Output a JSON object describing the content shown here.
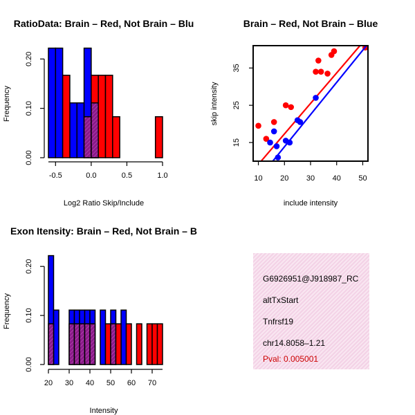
{
  "colors": {
    "red": "#ff0000",
    "blue": "#0000ff",
    "purple": "#8b1a89",
    "infobg": "#f6dcec",
    "pval": "#cc0000"
  },
  "chart_data": [
    {
      "id": "ratio",
      "type": "bar",
      "title": "RatioData: Brain – Red, Not Brain – Blu",
      "xlabel": "Log2 Ratio Skip/Include",
      "ylabel": "Frequency",
      "xlim": [
        -0.6,
        1.0
      ],
      "ylim": [
        0,
        0.22
      ],
      "xticks": [
        {
          "v": -0.5,
          "label": "-0.5"
        },
        {
          "v": 0.0,
          "label": "0.0"
        },
        {
          "v": 0.5,
          "label": "0.5"
        },
        {
          "v": 1.0,
          "label": "1.0"
        }
      ],
      "yticks": [
        {
          "v": 0.0,
          "label": "0.00"
        },
        {
          "v": 0.1,
          "label": "0.10"
        },
        {
          "v": 0.2,
          "label": "0.20"
        }
      ],
      "series": [
        {
          "name": "Brain",
          "color": "red",
          "bins": [
            {
              "x0": -0.4,
              "x1": -0.3,
              "v": 0.167
            },
            {
              "x0": -0.1,
              "x1": 0.0,
              "v": 0.083
            },
            {
              "x0": 0.0,
              "x1": 0.1,
              "v": 0.167
            },
            {
              "x0": 0.1,
              "x1": 0.2,
              "v": 0.167
            },
            {
              "x0": 0.2,
              "x1": 0.3,
              "v": 0.167
            },
            {
              "x0": 0.3,
              "x1": 0.4,
              "v": 0.083
            },
            {
              "x0": 0.9,
              "x1": 1.0,
              "v": 0.083
            }
          ]
        },
        {
          "name": "Not Brain",
          "color": "blue",
          "bins": [
            {
              "x0": -0.6,
              "x1": -0.5,
              "v": 0.222
            },
            {
              "x0": -0.5,
              "x1": -0.4,
              "v": 0.222
            },
            {
              "x0": -0.3,
              "x1": -0.2,
              "v": 0.111
            },
            {
              "x0": -0.2,
              "x1": -0.1,
              "v": 0.111
            },
            {
              "x0": -0.1,
              "x1": 0.0,
              "v": 0.222
            },
            {
              "x0": 0.0,
              "x1": 0.1,
              "v": 0.111
            }
          ]
        }
      ]
    },
    {
      "id": "scatter",
      "type": "scatter",
      "title": "Brain – Red, Not Brain – Blue",
      "xlabel": "include intensity",
      "ylabel": "skip intensity",
      "xlim": [
        8,
        52
      ],
      "ylim": [
        10,
        41
      ],
      "xticks": [
        {
          "v": 10,
          "label": "10"
        },
        {
          "v": 20,
          "label": "20"
        },
        {
          "v": 30,
          "label": "30"
        },
        {
          "v": 40,
          "label": "40"
        },
        {
          "v": 50,
          "label": "50"
        }
      ],
      "yticks": [
        {
          "v": 15,
          "label": "15"
        },
        {
          "v": 25,
          "label": "25"
        },
        {
          "v": 35,
          "label": "35"
        }
      ],
      "series": [
        {
          "name": "Brain",
          "color": "red",
          "points": [
            [
              10,
              19.5
            ],
            [
              13,
              16
            ],
            [
              16,
              20.5
            ],
            [
              20.5,
              25
            ],
            [
              22.5,
              24.5
            ],
            [
              32,
              34
            ],
            [
              33,
              37
            ],
            [
              34,
              34
            ],
            [
              36.5,
              33.5
            ],
            [
              38,
              38.5
            ],
            [
              39,
              39.5
            ],
            [
              51,
              40.5
            ]
          ],
          "fit": [
            [
              8,
              7.5
            ],
            [
              52,
              43.5
            ]
          ]
        },
        {
          "name": "Not Brain",
          "color": "blue",
          "points": [
            [
              14.5,
              15
            ],
            [
              16,
              18
            ],
            [
              17,
              14
            ],
            [
              17.5,
              11
            ],
            [
              20.5,
              15.5
            ],
            [
              22,
              15
            ],
            [
              25,
              21
            ],
            [
              26,
              20.5
            ],
            [
              32,
              27
            ]
          ],
          "fit": [
            [
              8,
              3.5
            ],
            [
              52,
              41.5
            ]
          ]
        }
      ]
    },
    {
      "id": "intensity",
      "type": "bar",
      "title": "Exon Itensity: Brain – Red, Not Brain – B",
      "xlabel": "Intensity",
      "ylabel": "Frequency",
      "xlim": [
        20,
        75
      ],
      "ylim": [
        0,
        0.22
      ],
      "xticks": [
        {
          "v": 20,
          "label": "20"
        },
        {
          "v": 30,
          "label": "30"
        },
        {
          "v": 40,
          "label": "40"
        },
        {
          "v": 50,
          "label": "50"
        },
        {
          "v": 60,
          "label": "60"
        },
        {
          "v": 70,
          "label": "70"
        }
      ],
      "yticks": [
        {
          "v": 0.0,
          "label": "0.00"
        },
        {
          "v": 0.1,
          "label": "0.10"
        },
        {
          "v": 0.2,
          "label": "0.20"
        }
      ],
      "series": [
        {
          "name": "Brain",
          "color": "red",
          "bins": [
            {
              "x0": 20,
              "x1": 22.5,
              "v": 0.083
            },
            {
              "x0": 30,
              "x1": 32.5,
              "v": 0.083
            },
            {
              "x0": 32.5,
              "x1": 35,
              "v": 0.083
            },
            {
              "x0": 35,
              "x1": 37.5,
              "v": 0.083
            },
            {
              "x0": 37.5,
              "x1": 40,
              "v": 0.083
            },
            {
              "x0": 40,
              "x1": 42.5,
              "v": 0.083
            },
            {
              "x0": 47.5,
              "x1": 50,
              "v": 0.083
            },
            {
              "x0": 50,
              "x1": 52.5,
              "v": 0.083
            },
            {
              "x0": 52.5,
              "x1": 55,
              "v": 0.083
            },
            {
              "x0": 57.5,
              "x1": 60,
              "v": 0.083
            },
            {
              "x0": 62.5,
              "x1": 65,
              "v": 0.083
            },
            {
              "x0": 67.5,
              "x1": 70,
              "v": 0.083
            },
            {
              "x0": 70,
              "x1": 72.5,
              "v": 0.083
            },
            {
              "x0": 72.5,
              "x1": 75,
              "v": 0.083
            }
          ]
        },
        {
          "name": "Not Brain",
          "color": "blue",
          "bins": [
            {
              "x0": 20,
              "x1": 22.5,
              "v": 0.222
            },
            {
              "x0": 22.5,
              "x1": 25,
              "v": 0.111
            },
            {
              "x0": 30,
              "x1": 32.5,
              "v": 0.111
            },
            {
              "x0": 32.5,
              "x1": 35,
              "v": 0.111
            },
            {
              "x0": 35,
              "x1": 37.5,
              "v": 0.111
            },
            {
              "x0": 37.5,
              "x1": 40,
              "v": 0.111
            },
            {
              "x0": 40,
              "x1": 42.5,
              "v": 0.111
            },
            {
              "x0": 45,
              "x1": 47.5,
              "v": 0.111
            },
            {
              "x0": 50,
              "x1": 52.5,
              "v": 0.111
            },
            {
              "x0": 55,
              "x1": 57.5,
              "v": 0.111
            }
          ]
        }
      ]
    }
  ],
  "info": {
    "id": "G6926951@J918987_RC",
    "event": "altTxStart",
    "gene": "Tnfrsf19",
    "location": "chr14.8058–1.21",
    "pval": "Pval: 0.005001"
  }
}
